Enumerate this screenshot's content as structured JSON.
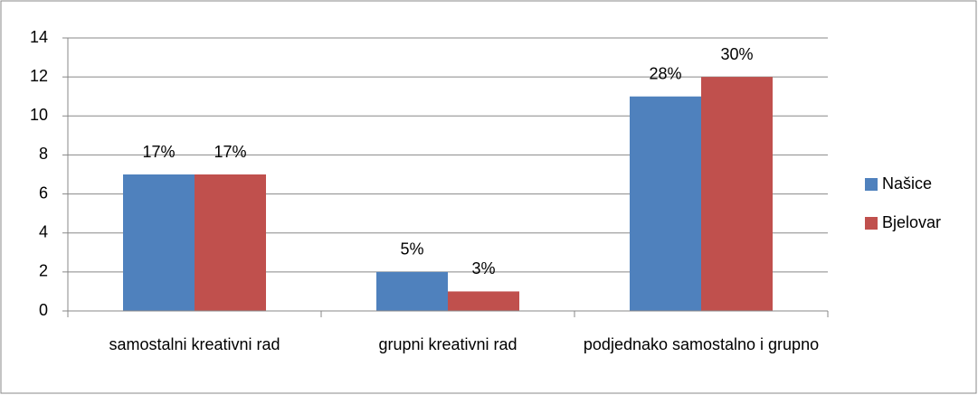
{
  "chart_data": {
    "type": "bar",
    "categories": [
      "samostalni kreativni rad",
      "grupni kreativni rad",
      "podjednako samostalno i grupno"
    ],
    "series": [
      {
        "name": "Našice",
        "color": "#4f81bd",
        "values": [
          7,
          2,
          11
        ],
        "labels": [
          "17%",
          "5%",
          "28%"
        ]
      },
      {
        "name": "Bjelovar",
        "color": "#c0504d",
        "values": [
          7,
          1,
          12
        ],
        "labels": [
          "17%",
          "3%",
          "30%"
        ]
      }
    ],
    "ylim": [
      0,
      14
    ],
    "yticks": [
      0,
      2,
      4,
      6,
      8,
      10,
      12,
      14
    ],
    "grid": true,
    "legend": "right"
  }
}
